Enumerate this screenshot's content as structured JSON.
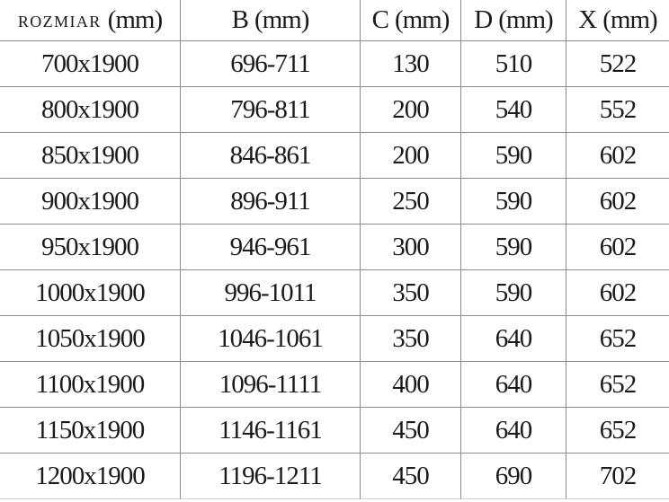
{
  "chart_data": {
    "type": "table",
    "columns": [
      "ROZMIAR (mm)",
      "B (mm)",
      "C (mm)",
      "D (mm)",
      "X (mm)"
    ],
    "header_parts": [
      {
        "name": "ROZMIAR",
        "unit": "(mm)"
      },
      {
        "name": "B",
        "unit": "(mm)"
      },
      {
        "name": "C",
        "unit": "(mm)"
      },
      {
        "name": "D",
        "unit": "(mm)"
      },
      {
        "name": "X",
        "unit": "(mm)"
      }
    ],
    "rows": [
      [
        "700x1900",
        "696-711",
        "130",
        "510",
        "522"
      ],
      [
        "800x1900",
        "796-811",
        "200",
        "540",
        "552"
      ],
      [
        "850x1900",
        "846-861",
        "200",
        "590",
        "602"
      ],
      [
        "900x1900",
        "896-911",
        "250",
        "590",
        "602"
      ],
      [
        "950x1900",
        "946-961",
        "300",
        "590",
        "602"
      ],
      [
        "1000x1900",
        "996-1011",
        "350",
        "590",
        "602"
      ],
      [
        "1050x1900",
        "1046-1061",
        "350",
        "640",
        "652"
      ],
      [
        "1100x1900",
        "1096-1111",
        "400",
        "640",
        "652"
      ],
      [
        "1150x1900",
        "1146-1161",
        "450",
        "640",
        "652"
      ],
      [
        "1200x1900",
        "1196-1211",
        "450",
        "690",
        "702"
      ]
    ],
    "layout": {
      "grid": "on",
      "outer_border": "none",
      "grid_line_color": "#8c8c8c",
      "bottom_line_color": "#cfcfcf",
      "text_color": "#1a1a1a",
      "background": "#ffffff"
    }
  }
}
